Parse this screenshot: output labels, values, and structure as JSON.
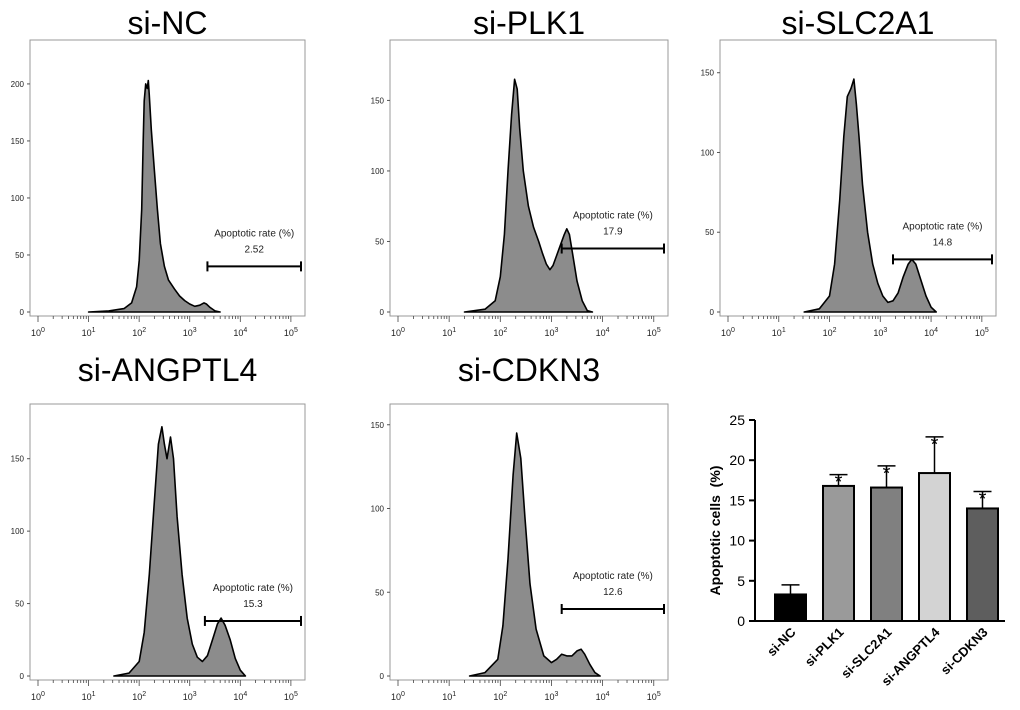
{
  "figure": {
    "histograms": [
      {
        "title": "si-NC",
        "gate_label": "Apoptotic rate (%)",
        "gate_value": "2.52",
        "y_ticks": [
          "0",
          "50",
          "100",
          "150",
          "200"
        ],
        "y_max": 235,
        "x_ticks": [
          "10^0",
          "10^1",
          "10^2",
          "10^3",
          "10^4",
          "10^5"
        ],
        "gate_range_log10": [
          3.35,
          5.2
        ],
        "gate_y": 40,
        "curve": [
          [
            1.0,
            0
          ],
          [
            1.4,
            1
          ],
          [
            1.7,
            3
          ],
          [
            1.85,
            8
          ],
          [
            1.95,
            22
          ],
          [
            2.0,
            45
          ],
          [
            2.05,
            90
          ],
          [
            2.08,
            150
          ],
          [
            2.1,
            185
          ],
          [
            2.13,
            200
          ],
          [
            2.16,
            196
          ],
          [
            2.18,
            203
          ],
          [
            2.2,
            190
          ],
          [
            2.24,
            160
          ],
          [
            2.3,
            125
          ],
          [
            2.36,
            90
          ],
          [
            2.42,
            60
          ],
          [
            2.5,
            40
          ],
          [
            2.58,
            28
          ],
          [
            2.7,
            20
          ],
          [
            2.8,
            14
          ],
          [
            2.9,
            10
          ],
          [
            3.0,
            7
          ],
          [
            3.1,
            5
          ],
          [
            3.2,
            6
          ],
          [
            3.28,
            8
          ],
          [
            3.33,
            7
          ],
          [
            3.4,
            4
          ],
          [
            3.5,
            1
          ],
          [
            3.6,
            0
          ]
        ]
      },
      {
        "title": "si-PLK1",
        "gate_label": "Apoptotic rate (%)",
        "gate_value": "17.9",
        "y_ticks": [
          "0",
          "50",
          "100",
          "150"
        ],
        "y_max": 190,
        "x_ticks": [
          "10^0",
          "10^1",
          "10^2",
          "10^3",
          "10^4",
          "10^5"
        ],
        "gate_range_log10": [
          3.2,
          5.2
        ],
        "gate_y": 45,
        "curve": [
          [
            1.3,
            0
          ],
          [
            1.7,
            2
          ],
          [
            1.9,
            8
          ],
          [
            2.0,
            25
          ],
          [
            2.08,
            55
          ],
          [
            2.15,
            100
          ],
          [
            2.22,
            140
          ],
          [
            2.28,
            165
          ],
          [
            2.33,
            158
          ],
          [
            2.38,
            130
          ],
          [
            2.45,
            100
          ],
          [
            2.55,
            75
          ],
          [
            2.65,
            60
          ],
          [
            2.75,
            50
          ],
          [
            2.82,
            42
          ],
          [
            2.9,
            34
          ],
          [
            2.97,
            30
          ],
          [
            3.03,
            33
          ],
          [
            3.1,
            40
          ],
          [
            3.18,
            48
          ],
          [
            3.25,
            55
          ],
          [
            3.3,
            59
          ],
          [
            3.35,
            55
          ],
          [
            3.42,
            40
          ],
          [
            3.5,
            22
          ],
          [
            3.6,
            8
          ],
          [
            3.7,
            1
          ],
          [
            3.8,
            0
          ]
        ]
      },
      {
        "title": "si-SLC2A1",
        "gate_label": "Apoptotic rate (%)",
        "gate_value": "14.8",
        "y_ticks": [
          "0",
          "50",
          "100",
          "150"
        ],
        "y_max": 168,
        "x_ticks": [
          "10^0",
          "10^1",
          "10^2",
          "10^3",
          "10^4",
          "10^5"
        ],
        "gate_range_log10": [
          3.25,
          5.2
        ],
        "gate_y": 33,
        "curve": [
          [
            1.5,
            0
          ],
          [
            1.8,
            2
          ],
          [
            2.0,
            10
          ],
          [
            2.1,
            30
          ],
          [
            2.2,
            70
          ],
          [
            2.28,
            110
          ],
          [
            2.35,
            135
          ],
          [
            2.42,
            140
          ],
          [
            2.48,
            146
          ],
          [
            2.53,
            130
          ],
          [
            2.58,
            110
          ],
          [
            2.65,
            80
          ],
          [
            2.75,
            50
          ],
          [
            2.85,
            30
          ],
          [
            2.95,
            18
          ],
          [
            3.05,
            10
          ],
          [
            3.15,
            6
          ],
          [
            3.25,
            7
          ],
          [
            3.35,
            12
          ],
          [
            3.45,
            22
          ],
          [
            3.55,
            30
          ],
          [
            3.62,
            33
          ],
          [
            3.7,
            30
          ],
          [
            3.8,
            20
          ],
          [
            3.9,
            10
          ],
          [
            4.0,
            3
          ],
          [
            4.1,
            0
          ]
        ]
      },
      {
        "title": "si-ANGPTL4",
        "gate_label": "Apoptotic rate (%)",
        "gate_value": "15.3",
        "y_ticks": [
          "0",
          "50",
          "100",
          "150"
        ],
        "y_max": 185,
        "x_ticks": [
          "10^0",
          "10^1",
          "10^2",
          "10^3",
          "10^4",
          "10^5"
        ],
        "gate_range_log10": [
          3.3,
          5.2
        ],
        "gate_y": 38,
        "curve": [
          [
            1.5,
            0
          ],
          [
            1.8,
            2
          ],
          [
            2.0,
            10
          ],
          [
            2.1,
            30
          ],
          [
            2.2,
            70
          ],
          [
            2.3,
            120
          ],
          [
            2.38,
            160
          ],
          [
            2.45,
            172
          ],
          [
            2.5,
            160
          ],
          [
            2.55,
            150
          ],
          [
            2.62,
            165
          ],
          [
            2.68,
            150
          ],
          [
            2.75,
            110
          ],
          [
            2.85,
            70
          ],
          [
            2.95,
            40
          ],
          [
            3.05,
            22
          ],
          [
            3.15,
            13
          ],
          [
            3.25,
            10
          ],
          [
            3.35,
            14
          ],
          [
            3.45,
            25
          ],
          [
            3.55,
            36
          ],
          [
            3.62,
            40
          ],
          [
            3.7,
            35
          ],
          [
            3.8,
            25
          ],
          [
            3.9,
            12
          ],
          [
            4.0,
            4
          ],
          [
            4.1,
            0
          ]
        ]
      },
      {
        "title": "si-CDKN3",
        "gate_label": "Apoptotic rate (%)",
        "gate_value": "12.6",
        "y_ticks": [
          "0",
          "50",
          "100",
          "150"
        ],
        "y_max": 160,
        "x_ticks": [
          "10^0",
          "10^1",
          "10^2",
          "10^3",
          "10^4",
          "10^5"
        ],
        "gate_range_log10": [
          3.2,
          5.2
        ],
        "gate_y": 40,
        "curve": [
          [
            1.4,
            0
          ],
          [
            1.7,
            2
          ],
          [
            1.95,
            10
          ],
          [
            2.05,
            30
          ],
          [
            2.15,
            70
          ],
          [
            2.25,
            120
          ],
          [
            2.32,
            145
          ],
          [
            2.4,
            130
          ],
          [
            2.48,
            95
          ],
          [
            2.58,
            55
          ],
          [
            2.7,
            28
          ],
          [
            2.85,
            12
          ],
          [
            3.0,
            8
          ],
          [
            3.1,
            10
          ],
          [
            3.2,
            13
          ],
          [
            3.3,
            12
          ],
          [
            3.4,
            12
          ],
          [
            3.5,
            15
          ],
          [
            3.58,
            16
          ],
          [
            3.65,
            13
          ],
          [
            3.75,
            7
          ],
          [
            3.85,
            2
          ],
          [
            3.95,
            0
          ]
        ]
      }
    ]
  },
  "chart_data": {
    "type": "bar",
    "title": "",
    "xlabel": "",
    "ylabel": "Apoptotic cells  (%)",
    "ylim": [
      0,
      25
    ],
    "y_ticks": [
      "0",
      "5",
      "10",
      "15",
      "20",
      "25"
    ],
    "categories": [
      "si-NC",
      "si-PLK1",
      "si-SLC2A1",
      "si-ANGPTL4",
      "si-CDKN3"
    ],
    "values": [
      3.3,
      16.8,
      16.6,
      18.4,
      14.0
    ],
    "errors": [
      1.2,
      1.4,
      2.7,
      4.5,
      2.1
    ],
    "significance": [
      "",
      "*",
      "*",
      "*",
      "*"
    ],
    "colors": [
      "#000000",
      "#9a9a9a",
      "#808080",
      "#d3d3d3",
      "#5e5e5e"
    ]
  }
}
